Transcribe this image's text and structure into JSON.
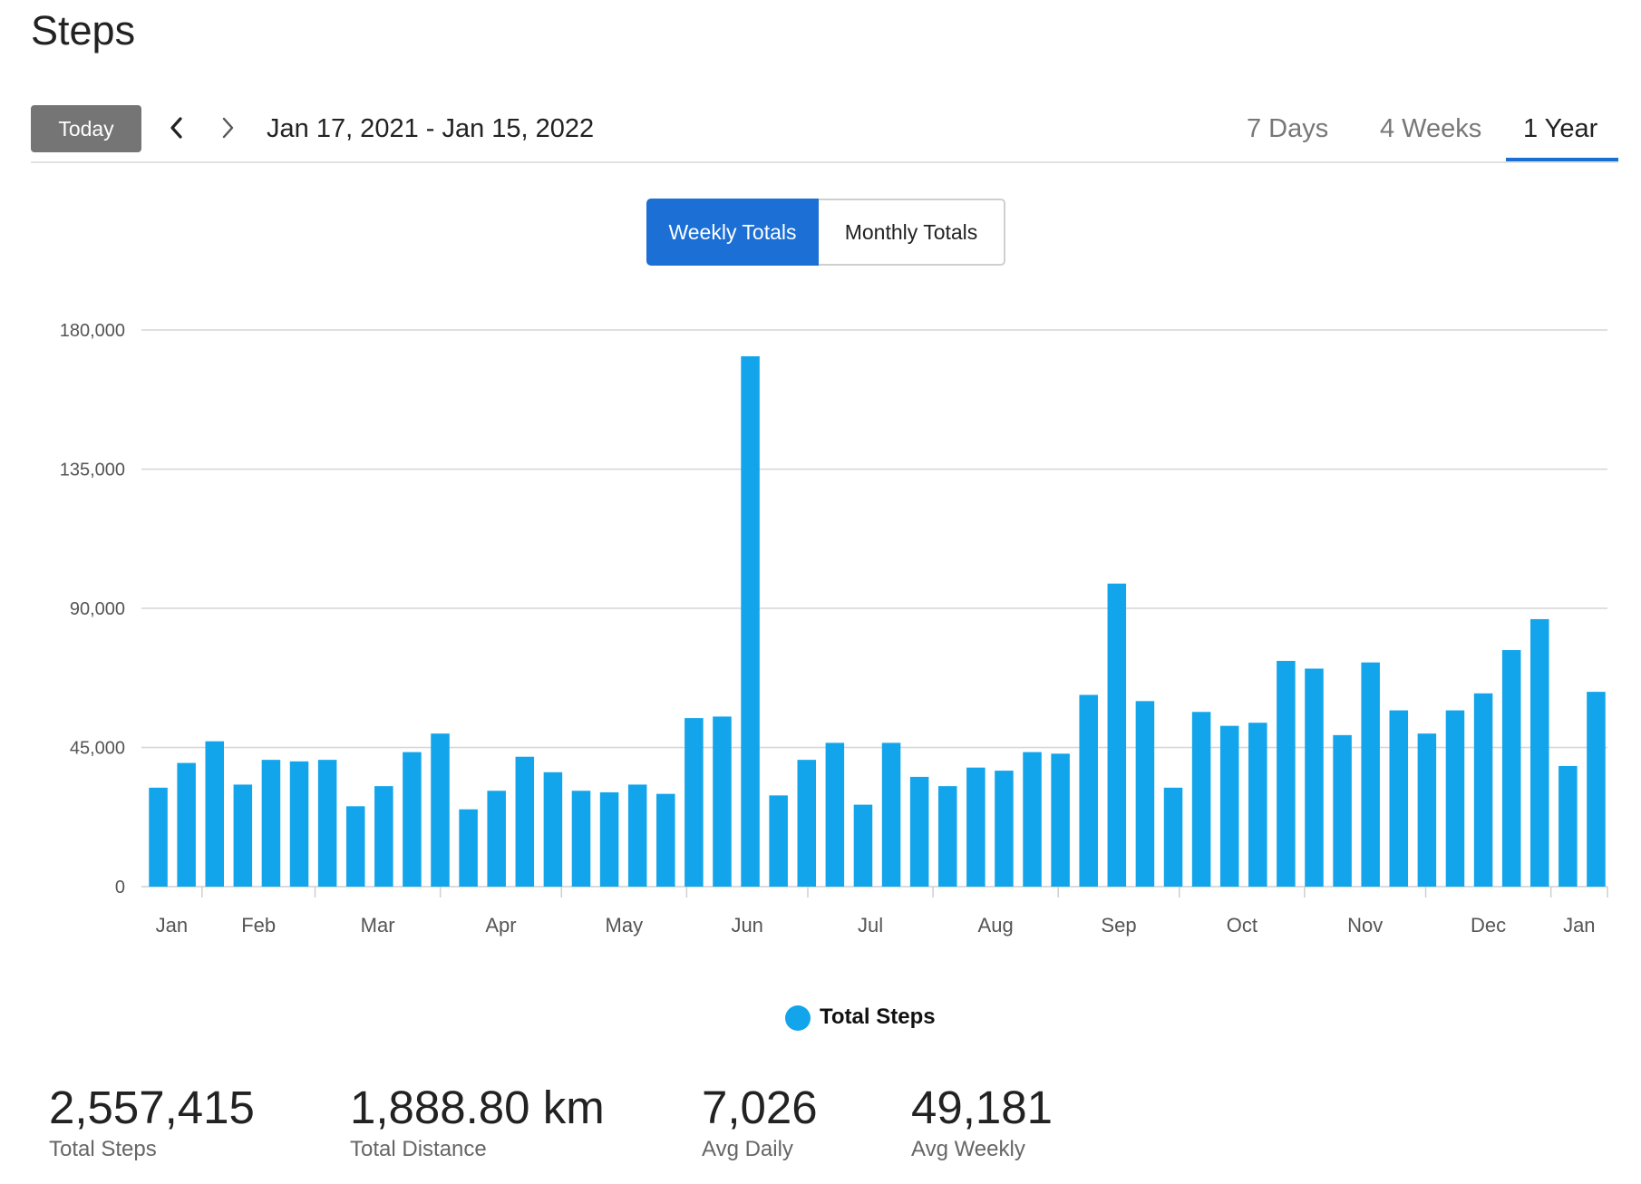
{
  "page": {
    "title": "Steps"
  },
  "toolbar": {
    "today_label": "Today",
    "date_range": "Jan 17, 2021 - Jan 15, 2022",
    "periods": [
      "7 Days",
      "4 Weeks",
      "1 Year"
    ],
    "active_period": "1 Year"
  },
  "view_toggle": {
    "weekly_label": "Weekly Totals",
    "monthly_label": "Monthly Totals",
    "active": "Weekly Totals"
  },
  "legend": {
    "label": "Total Steps",
    "color": "#12a5eb"
  },
  "chart_data": {
    "type": "bar",
    "x_start": "Jan 17, 2021",
    "x_end": "Jan 15, 2022",
    "x_tick_labels": [
      "Jan",
      "Feb",
      "Mar",
      "Apr",
      "May",
      "Jun",
      "Jul",
      "Aug",
      "Sep",
      "Oct",
      "Nov",
      "Dec",
      "Jan"
    ],
    "y_tick_labels": [
      "0",
      "45,000",
      "90,000",
      "135,000",
      "180,000"
    ],
    "ylim": [
      0,
      180000
    ],
    "grid": true,
    "legend_position": "bottom-center",
    "series": [
      {
        "name": "Total Steps",
        "color": "#12a5eb",
        "values": [
          32000,
          40000,
          47000,
          33000,
          41000,
          40500,
          41000,
          26000,
          32500,
          43500,
          49500,
          25000,
          31000,
          42000,
          37000,
          31000,
          30500,
          33000,
          30000,
          54500,
          55000,
          171500,
          29500,
          41000,
          46500,
          26500,
          46500,
          35500,
          32500,
          38500,
          37500,
          43500,
          43000,
          62000,
          98000,
          60000,
          32000,
          56500,
          52000,
          53000,
          73000,
          70500,
          49000,
          72500,
          57000,
          49500,
          57000,
          62500,
          76500,
          86500,
          39000,
          63000
        ]
      }
    ]
  },
  "stats": [
    {
      "value": "2,557,415",
      "label": "Total Steps"
    },
    {
      "value": "1,888.80 km",
      "label": "Total Distance"
    },
    {
      "value": "7,026",
      "label": "Avg Daily"
    },
    {
      "value": "49,181",
      "label": "Avg Weekly"
    }
  ]
}
